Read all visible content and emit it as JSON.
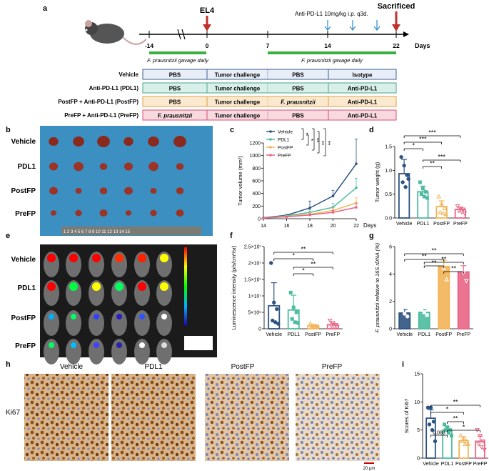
{
  "panel_labels": [
    "a",
    "b",
    "c",
    "d",
    "e",
    "f",
    "g",
    "h",
    "i"
  ],
  "panel_a": {
    "timeline_ticks": [
      "-14",
      "0",
      "7",
      "14",
      "22"
    ],
    "days_label": "Days",
    "el4_label": "EL4",
    "sacrificed_label": "Sacrificed",
    "antipdl1_note": "Anti-PD-L1 10mg/kg i.p. q3d.",
    "gavage_pre": "F. prausnitzii gavage daily",
    "gavage_post": "F. prausnitzii gavage daily",
    "groups": [
      {
        "name": "Vehicle",
        "cells": [
          "PBS",
          "Tumor challenge",
          "PBS",
          "Isotype"
        ],
        "color": "#e7eef7",
        "border": "#3f5f8f"
      },
      {
        "name": "Anti-PD-L1 (PDL1)",
        "cells": [
          "PBS",
          "Tumor challenge",
          "PBS",
          "Anti-PD-L1"
        ],
        "color": "#d9f0ea",
        "border": "#4aa38c"
      },
      {
        "name": "PostFP + Anti-PD-L1 (PostFP)",
        "cells": [
          "PBS",
          "Tumor challenge",
          "F. prausnitzii",
          "Anti-PD-L1"
        ],
        "color": "#fbe9cf",
        "border": "#e0a040"
      },
      {
        "name": "PreFP + Anti-PD-L1 (PreFP)",
        "cells": [
          "F. prausnitzii",
          "Tumor challenge",
          "PBS",
          "Anti-PD-L1"
        ],
        "color": "#f8d9df",
        "border": "#d85070"
      }
    ]
  },
  "panel_b": {
    "row_labels": [
      "Vehicle",
      "PDL1",
      "PostFP",
      "PreFP"
    ],
    "ruler_text": "1 2 3 4 5 6 7 8 9 10 11 12 13 14 15"
  },
  "panel_e": {
    "row_labels": [
      "Vehicle",
      "PDL1",
      "PostFP",
      "PreFP"
    ]
  },
  "panel_h": {
    "col_labels": [
      "Vehicle",
      "PDL1",
      "PostFP",
      "PreFP"
    ],
    "row_label": "Ki67",
    "scale_label": "20 μm"
  },
  "colors": {
    "vehicle": "#2d5382",
    "pdl1": "#4dbba0",
    "postfp": "#f2b457",
    "prefp": "#e86585"
  },
  "chart_data": [
    {
      "panel": "c",
      "type": "line",
      "title": "",
      "xlabel": "Days",
      "ylabel": "Tumor volume (mm³)",
      "x": [
        14,
        16,
        18,
        20,
        22
      ],
      "xlim": [
        14,
        22
      ],
      "ylim": [
        0,
        1200
      ],
      "yticks": [
        0,
        200,
        400,
        600,
        800,
        1000,
        1200
      ],
      "series": [
        {
          "name": "Vehicle",
          "values": [
            15,
            55,
            170,
            360,
            870
          ],
          "err": [
            5,
            15,
            110,
            90,
            390
          ]
        },
        {
          "name": "PDL1",
          "values": [
            12,
            45,
            100,
            180,
            490
          ],
          "err": [
            4,
            10,
            40,
            60,
            150
          ]
        },
        {
          "name": "PostFP",
          "values": [
            10,
            35,
            70,
            130,
            250
          ],
          "err": [
            3,
            8,
            20,
            40,
            80
          ]
        },
        {
          "name": "PreFP",
          "values": [
            10,
            30,
            60,
            100,
            180
          ],
          "err": [
            3,
            6,
            15,
            30,
            60
          ]
        }
      ],
      "sig": [
        "*",
        "*",
        "**",
        "**",
        "**"
      ]
    },
    {
      "panel": "d",
      "type": "bar",
      "xlabel": "",
      "ylabel": "Tumor weight (g)",
      "ylim": [
        0,
        1.5
      ],
      "yticks": [
        "0.0",
        "0.5",
        "1.0",
        "1.5"
      ],
      "categories": [
        "Vehicle",
        "PDL1",
        "PostFP",
        "PreFP"
      ],
      "values": [
        0.93,
        0.55,
        0.24,
        0.18
      ],
      "err": [
        0.3,
        0.12,
        0.12,
        0.05
      ],
      "points": [
        [
          1.28,
          1.1,
          0.9,
          0.75,
          0.65,
          0.82
        ],
        [
          0.75,
          0.62,
          0.55,
          0.5,
          0.45,
          0.42
        ],
        [
          0.45,
          0.3,
          0.2,
          0.12,
          0.1,
          0.08
        ],
        [
          0.25,
          0.2,
          0.18,
          0.15,
          0.12,
          0.1
        ]
      ],
      "sig": [
        "*",
        "**",
        "***",
        "***",
        "***"
      ]
    },
    {
      "panel": "f",
      "type": "bar",
      "ylabel": "Luminescence intensity (p/s/cm²/sr)",
      "ylim": [
        0,
        25000000
      ],
      "yticks": [
        "0",
        "5×10⁶",
        "1×10⁷",
        "1.5×10⁷",
        "2×10⁷",
        "2.5×10⁷"
      ],
      "categories": [
        "Vehicle",
        "PDL1",
        "PostFP",
        "PreFP"
      ],
      "values": [
        7000000,
        5700000,
        900000,
        1200000
      ],
      "err": [
        7000000,
        4500000,
        300000,
        500000
      ],
      "points": [
        [
          20000000,
          8000000,
          6000000,
          2500000,
          2000000,
          1500000
        ],
        [
          11000000,
          6500000,
          5000000,
          3000000,
          2000000,
          1800000
        ],
        [
          1500000,
          1000000,
          900000,
          800000,
          600000,
          700000
        ],
        [
          2500000,
          1800000,
          1200000,
          800000,
          600000,
          500000
        ]
      ],
      "sig": [
        "*",
        "**",
        "*",
        "**"
      ]
    },
    {
      "panel": "g",
      "type": "bar",
      "ylabel": "F. prausnitzii relative to 16S rDNA (%)",
      "ylim": [
        0,
        6
      ],
      "yticks": [
        "0",
        "2",
        "4",
        "6"
      ],
      "categories": [
        "Vehicle",
        "PDL1",
        "PostFP",
        "PreFP"
      ],
      "values": [
        1.15,
        1.2,
        4.55,
        4.15
      ],
      "err": [
        0.25,
        0.2,
        0.45,
        0.45
      ],
      "points": [
        [
          1.4,
          1.1,
          0.9
        ],
        [
          1.4,
          1.2,
          1.0
        ],
        [
          5.0,
          4.4,
          3.6
        ],
        [
          4.8,
          4.1,
          3.5
        ]
      ],
      "sig": [
        "**",
        "**",
        "**",
        "**",
        "**"
      ]
    },
    {
      "panel": "i",
      "type": "bar",
      "ylabel": "Scores of Ki67",
      "ylim": [
        0,
        15
      ],
      "yticks": [
        "0",
        "5",
        "10",
        "15"
      ],
      "categories": [
        "Vehicle",
        "PDL1",
        "PostFP",
        "PreFP"
      ],
      "values": [
        7.1,
        5.0,
        3.1,
        3.0
      ],
      "err": [
        1.5,
        0.6,
        0.7,
        0.9
      ],
      "points": [
        [
          9,
          9,
          6.5,
          6,
          5,
          3
        ],
        [
          6,
          5.5,
          5,
          5,
          4.5,
          4
        ],
        [
          4,
          3.5,
          3,
          3,
          2.5,
          2.5
        ],
        [
          5,
          4,
          3,
          2.5,
          2,
          1.5
        ]
      ],
      "sig": [
        "0.088",
        "**",
        "*",
        "*",
        "**"
      ]
    }
  ]
}
